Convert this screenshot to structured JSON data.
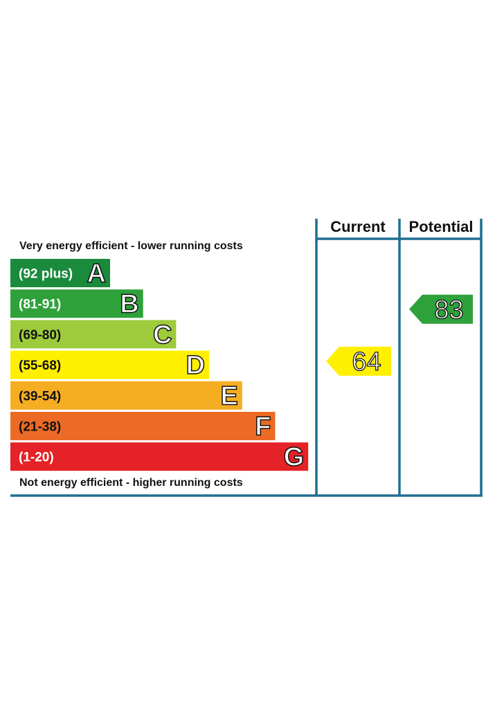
{
  "chart_data": {
    "type": "bar",
    "top_caption": "Very energy efficient - lower running costs",
    "bottom_caption": "Not energy efficient - higher running costs",
    "columns": [
      "Current",
      "Potential"
    ],
    "bands": [
      {
        "letter": "A",
        "range": "(92 plus)",
        "min": 92,
        "max": 100,
        "color": "#1a8a3c",
        "range_color": "#ffffff"
      },
      {
        "letter": "B",
        "range": "(81-91)",
        "min": 81,
        "max": 91,
        "color": "#2ea13a",
        "range_color": "#ffffff"
      },
      {
        "letter": "C",
        "range": "(69-80)",
        "min": 69,
        "max": 80,
        "color": "#9dcb3c",
        "range_color": "#111111"
      },
      {
        "letter": "D",
        "range": "(55-68)",
        "min": 55,
        "max": 68,
        "color": "#ffef00",
        "range_color": "#111111"
      },
      {
        "letter": "E",
        "range": "(39-54)",
        "min": 39,
        "max": 54,
        "color": "#f5ad22",
        "range_color": "#111111"
      },
      {
        "letter": "F",
        "range": "(21-38)",
        "min": 21,
        "max": 38,
        "color": "#ec6a25",
        "range_color": "#111111"
      },
      {
        "letter": "G",
        "range": "(1-20)",
        "min": 1,
        "max": 20,
        "color": "#e42227",
        "range_color": "#ffffff"
      }
    ],
    "ratings": [
      {
        "column": "Current",
        "value": 64,
        "band": "D",
        "color": "#ffef00"
      },
      {
        "column": "Potential",
        "value": 83,
        "band": "B",
        "color": "#2ea13a"
      }
    ],
    "frame_color": "#1f6e93"
  }
}
